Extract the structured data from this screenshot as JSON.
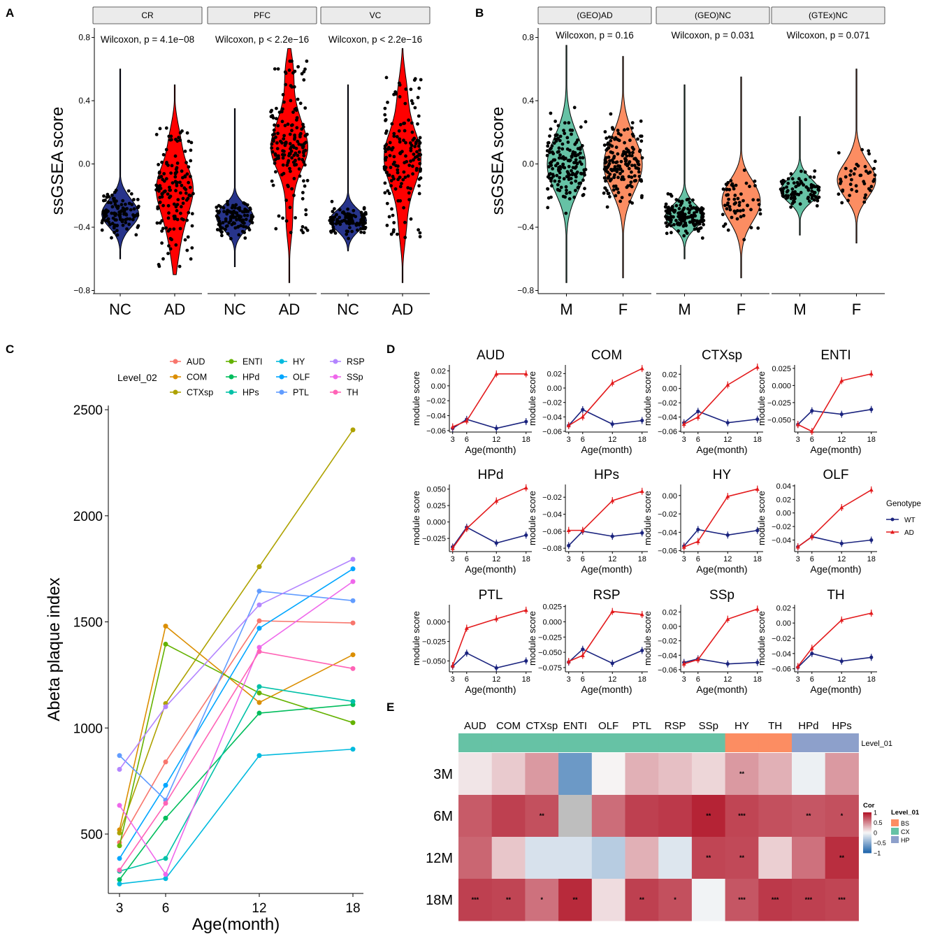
{
  "panels": {
    "A": {
      "letter": "A",
      "ylabel": "ssGSEA score",
      "yticks": [
        -0.8,
        -0.4,
        0.0,
        0.4,
        0.8
      ],
      "ytick_labels": [
        "−0.8",
        "−0.4",
        "0.0",
        "0.4",
        "0.8"
      ],
      "ylim": [
        -0.82,
        0.86
      ],
      "colors": {
        "NC": "#27348b",
        "AD": "#ff0000"
      },
      "facets": [
        {
          "strip": "CR",
          "stat": "Wilcoxon, p = 4.1e−08",
          "groups": [
            "NC",
            "AD"
          ],
          "dists": [
            {
              "min": -0.6,
              "max": 0.6,
              "median": -0.3,
              "spread": 0.12,
              "n": 110
            },
            {
              "min": -0.7,
              "max": 0.5,
              "median": -0.2,
              "spread": 0.22,
              "n": 150
            }
          ]
        },
        {
          "strip": "PFC",
          "stat": "Wilcoxon, p < 2.2e−16",
          "groups": [
            "NC",
            "AD"
          ],
          "dists": [
            {
              "min": -0.65,
              "max": 0.35,
              "median": -0.34,
              "spread": 0.1,
              "n": 110
            },
            {
              "min": -0.75,
              "max": 0.73,
              "median": 0.12,
              "spread": 0.22,
              "n": 170
            }
          ]
        },
        {
          "strip": "VC",
          "stat": "Wilcoxon, p < 2.2e−16",
          "groups": [
            "NC",
            "AD"
          ],
          "dists": [
            {
              "min": -0.55,
              "max": 0.5,
              "median": -0.36,
              "spread": 0.08,
              "n": 110
            },
            {
              "min": -0.75,
              "max": 0.73,
              "median": 0.05,
              "spread": 0.25,
              "n": 160
            }
          ]
        }
      ]
    },
    "B": {
      "letter": "B",
      "ylabel": "ssGSEA score",
      "yticks": [
        -0.8,
        -0.4,
        0.0,
        0.4,
        0.8
      ],
      "ytick_labels": [
        "−0.8",
        "−0.4",
        "0.0",
        "0.4",
        "0.8"
      ],
      "ylim": [
        -0.82,
        0.86
      ],
      "colors": {
        "M": "#66c2a5",
        "F": "#fc8d62"
      },
      "facets": [
        {
          "strip": "(GEO)AD",
          "stat": "Wilcoxon, p = 0.16",
          "groups": [
            "M",
            "F"
          ],
          "dists": [
            {
              "min": -0.75,
              "max": 0.75,
              "median": 0.0,
              "spread": 0.25,
              "n": 170
            },
            {
              "min": -0.72,
              "max": 0.68,
              "median": 0.0,
              "spread": 0.25,
              "n": 170
            }
          ]
        },
        {
          "strip": "(GEO)NC",
          "stat": "Wilcoxon, p = 0.031",
          "groups": [
            "M",
            "F"
          ],
          "dists": [
            {
              "min": -0.6,
              "max": 0.5,
              "median": -0.33,
              "spread": 0.1,
              "n": 160
            },
            {
              "min": -0.72,
              "max": 0.55,
              "median": -0.25,
              "spread": 0.18,
              "n": 60
            }
          ]
        },
        {
          "strip": "(GTEx)NC",
          "stat": "Wilcoxon, p = 0.071",
          "groups": [
            "M",
            "F"
          ],
          "dists": [
            {
              "min": -0.45,
              "max": 0.3,
              "median": -0.17,
              "spread": 0.1,
              "n": 90
            },
            {
              "min": -0.5,
              "max": 0.6,
              "median": -0.1,
              "spread": 0.15,
              "n": 45
            }
          ]
        }
      ]
    },
    "C": {
      "letter": "C",
      "chart_data": {
        "type": "line",
        "xlabel": "Age(month)",
        "ylabel": "Abeta plaque index",
        "x": [
          3,
          6,
          12,
          18
        ],
        "xticks": [
          "3",
          "6",
          "12",
          "18"
        ],
        "yticks": [
          500,
          1000,
          1500,
          2000,
          2500
        ],
        "ylim": [
          220,
          2520
        ],
        "legend_title": "Level_02",
        "series": [
          {
            "name": "AUD",
            "color": "#f8766d",
            "values": [
              460,
              840,
              1505,
              1495
            ]
          },
          {
            "name": "COM",
            "color": "#db8e00",
            "values": [
              520,
              1480,
              1120,
              1345
            ]
          },
          {
            "name": "CTXsp",
            "color": "#aea200",
            "values": [
              505,
              1115,
              1760,
              2405
            ]
          },
          {
            "name": "ENTI",
            "color": "#64b200",
            "values": [
              445,
              1395,
              1165,
              1025
            ]
          },
          {
            "name": "HPd",
            "color": "#00bd5c",
            "values": [
              285,
              575,
              1070,
              1110
            ]
          },
          {
            "name": "HPs",
            "color": "#00c1a7",
            "values": [
              325,
              385,
              1195,
              1125
            ]
          },
          {
            "name": "HY",
            "color": "#00bade",
            "values": [
              265,
              290,
              870,
              900
            ]
          },
          {
            "name": "OLF",
            "color": "#00a6ff",
            "values": [
              385,
              730,
              1470,
              1750
            ]
          },
          {
            "name": "PTL",
            "color": "#619cff",
            "values": [
              870,
              660,
              1645,
              1600
            ]
          },
          {
            "name": "RSP",
            "color": "#b385ff",
            "values": [
              805,
              1100,
              1580,
              1795
            ]
          },
          {
            "name": "SSp",
            "color": "#ef67eb",
            "values": [
              635,
              310,
              1380,
              1690
            ]
          },
          {
            "name": "TH",
            "color": "#ff63b6",
            "values": [
              330,
              645,
              1360,
              1280
            ]
          }
        ]
      }
    },
    "D": {
      "letter": "D",
      "chart_data": {
        "type": "line",
        "xlabel": "Age(month)",
        "ylabel": "module score",
        "x": [
          3,
          6,
          12,
          18
        ],
        "xticks": [
          "3",
          "6",
          "12",
          "18"
        ],
        "legend_title": "Genotype",
        "legend": [
          {
            "name": "WT",
            "color": "#1a237e"
          },
          {
            "name": "AD",
            "color": "#e31a1c"
          }
        ],
        "panels": [
          {
            "title": "AUD",
            "ylim": [
              -0.062,
              0.028
            ],
            "yticks": [
              0.02,
              0.0,
              -0.02,
              -0.04,
              -0.06
            ],
            "ytick_labels": [
              "0.02",
              "0.00",
              "−0.02",
              "−0.04",
              "−0.06"
            ],
            "WT": [
              -0.057,
              -0.045,
              -0.057,
              -0.048
            ],
            "AD": [
              -0.055,
              -0.047,
              0.016,
              0.016
            ]
          },
          {
            "title": "COM",
            "ylim": [
              -0.061,
              0.032
            ],
            "yticks": [
              0.02,
              0.0,
              -0.02,
              -0.04,
              -0.06
            ],
            "ytick_labels": [
              "0.02",
              "0.00",
              "−0.02",
              "−0.04",
              "−0.06"
            ],
            "WT": [
              -0.052,
              -0.03,
              -0.05,
              -0.045
            ],
            "AD": [
              -0.052,
              -0.04,
              0.007,
              0.027
            ]
          },
          {
            "title": "CTXsp",
            "ylim": [
              -0.061,
              0.033
            ],
            "yticks": [
              0.02,
              0.0,
              -0.02,
              -0.04,
              -0.06
            ],
            "ytick_labels": [
              "0.02",
              "0.00",
              "−0.02",
              "−0.04",
              "−0.06"
            ],
            "WT": [
              -0.048,
              -0.032,
              -0.048,
              -0.043
            ],
            "AD": [
              -0.05,
              -0.04,
              0.005,
              0.03
            ]
          },
          {
            "title": "ENTI",
            "ylim": [
              -0.068,
              0.03
            ],
            "yticks": [
              0.025,
              0.0,
              -0.025,
              -0.05
            ],
            "ytick_labels": [
              "0.025",
              "0.000",
              "−0.025",
              "−0.050"
            ],
            "WT": [
              -0.057,
              -0.037,
              -0.042,
              -0.035
            ],
            "AD": [
              -0.057,
              -0.067,
              0.007,
              0.017
            ]
          },
          {
            "title": "HPd",
            "ylim": [
              -0.045,
              0.057
            ],
            "yticks": [
              0.05,
              0.025,
              0.0,
              -0.025
            ],
            "ytick_labels": [
              "0.050",
              "0.025",
              "0.000",
              "−0.025"
            ],
            "WT": [
              -0.038,
              -0.008,
              -0.032,
              -0.02
            ],
            "AD": [
              -0.04,
              -0.01,
              0.032,
              0.052
            ]
          },
          {
            "title": "HPs",
            "ylim": [
              -0.084,
              -0.005
            ],
            "yticks": [
              -0.02,
              -0.04,
              -0.06,
              -0.08
            ],
            "ytick_labels": [
              "−0.02",
              "−0.04",
              "−0.06",
              "−0.08"
            ],
            "WT": [
              -0.077,
              -0.06,
              -0.066,
              -0.062
            ],
            "AD": [
              -0.059,
              -0.059,
              -0.024,
              -0.013
            ]
          },
          {
            "title": "HY",
            "ylim": [
              -0.061,
              0.012
            ],
            "yticks": [
              0.0,
              -0.02,
              -0.04,
              -0.06
            ],
            "ytick_labels": [
              "0.00",
              "−0.02",
              "−0.04",
              "−0.06"
            ],
            "WT": [
              -0.055,
              -0.037,
              -0.043,
              -0.038
            ],
            "AD": [
              -0.056,
              -0.05,
              -0.001,
              0.007
            ]
          },
          {
            "title": "OLF",
            "ylim": [
              -0.057,
              0.042
            ],
            "yticks": [
              0.04,
              0.02,
              0.0,
              -0.02,
              -0.04
            ],
            "ytick_labels": [
              "0.04",
              "0.02",
              "0.00",
              "−0.02",
              "−0.04"
            ],
            "WT": [
              -0.05,
              -0.035,
              -0.045,
              -0.04
            ],
            "AD": [
              -0.05,
              -0.035,
              0.008,
              0.034
            ]
          },
          {
            "title": "PTL",
            "ylim": [
              -0.064,
              0.022
            ],
            "yticks": [
              0.0,
              -0.025,
              -0.05
            ],
            "ytick_labels": [
              "0.000",
              "−0.025",
              "−0.050"
            ],
            "WT": [
              -0.057,
              -0.04,
              -0.059,
              -0.05
            ],
            "AD": [
              -0.056,
              -0.008,
              0.004,
              0.015
            ]
          },
          {
            "title": "RSP",
            "ylim": [
              -0.082,
              0.028
            ],
            "yticks": [
              0.025,
              0.0,
              -0.025,
              -0.05,
              -0.075
            ],
            "ytick_labels": [
              "0.025",
              "0.000",
              "−0.025",
              "−0.050",
              "−0.075"
            ],
            "WT": [
              -0.066,
              -0.045,
              -0.068,
              -0.047
            ],
            "AD": [
              -0.065,
              -0.055,
              0.017,
              0.012
            ]
          },
          {
            "title": "SSp",
            "ylim": [
              -0.063,
              0.03
            ],
            "yticks": [
              0.02,
              0.0,
              -0.02,
              -0.04,
              -0.06
            ],
            "ytick_labels": [
              "0.02",
              "0.00",
              "−0.02",
              "−0.04",
              "−0.06"
            ],
            "WT": [
              -0.05,
              -0.045,
              -0.052,
              -0.05
            ],
            "AD": [
              -0.052,
              -0.046,
              0.01,
              0.024
            ]
          },
          {
            "title": "TH",
            "ylim": [
              -0.064,
              0.024
            ],
            "yticks": [
              0.02,
              0.0,
              -0.02,
              -0.04,
              -0.06
            ],
            "ytick_labels": [
              "0.02",
              "0.00",
              "−0.02",
              "−0.04",
              "−0.06"
            ],
            "WT": [
              -0.058,
              -0.04,
              -0.05,
              -0.045
            ],
            "AD": [
              -0.057,
              -0.033,
              0.004,
              0.013
            ]
          }
        ]
      }
    },
    "E": {
      "letter": "E",
      "chart_data": {
        "type": "heatmap",
        "columns": [
          "AUD",
          "COM",
          "CTXsp",
          "ENTI",
          "OLF",
          "PTL",
          "RSP",
          "SSp",
          "HY",
          "TH",
          "HPd",
          "HPs"
        ],
        "column_groups": [
          "CX",
          "CX",
          "CX",
          "CX",
          "CX",
          "CX",
          "CX",
          "CX",
          "BS",
          "BS",
          "HP",
          "HP"
        ],
        "annotation_label": "Level_01",
        "rows": [
          "3M",
          "6M",
          "12M",
          "18M"
        ],
        "values": [
          [
            0.08,
            0.2,
            0.42,
            -0.65,
            0.02,
            0.32,
            0.25,
            0.15,
            0.42,
            0.32,
            -0.05,
            0.42
          ],
          [
            0.7,
            0.82,
            0.75,
            null,
            0.62,
            0.82,
            0.85,
            0.95,
            0.8,
            0.75,
            0.72,
            0.75
          ],
          [
            0.65,
            0.22,
            -0.15,
            -0.15,
            -0.3,
            0.32,
            -0.12,
            0.8,
            0.78,
            0.18,
            0.6,
            0.9
          ],
          [
            0.82,
            0.8,
            0.6,
            0.92,
            0.12,
            0.82,
            0.75,
            -0.03,
            0.72,
            0.85,
            0.82,
            0.8
          ]
        ],
        "stars": [
          [
            "",
            "",
            "",
            "",
            "",
            "",
            "",
            "",
            "**",
            "",
            "",
            ""
          ],
          [
            "",
            "",
            "**",
            "",
            "",
            "",
            "",
            "**",
            "***",
            "",
            "**",
            "*"
          ],
          [
            "",
            "",
            "",
            "",
            "",
            "",
            "",
            "**",
            "**",
            "",
            "",
            "**"
          ],
          [
            "***",
            "**",
            "*",
            "**",
            "",
            "**",
            "*",
            "",
            "***",
            "***",
            "***",
            "***"
          ]
        ],
        "na_color": "#bebebe",
        "colorbar_title": "Cor",
        "colorbar_ticks": [
          "1",
          "0.5",
          "0",
          "−0.5",
          "−1"
        ],
        "colorbar_values": [
          1,
          0.5,
          0,
          -0.5,
          -1
        ],
        "legend_title": "Level_01",
        "legend": [
          {
            "name": "BS",
            "color": "#fc8d62"
          },
          {
            "name": "CX",
            "color": "#66c2a5"
          },
          {
            "name": "HP",
            "color": "#8da0cb"
          }
        ]
      }
    }
  }
}
